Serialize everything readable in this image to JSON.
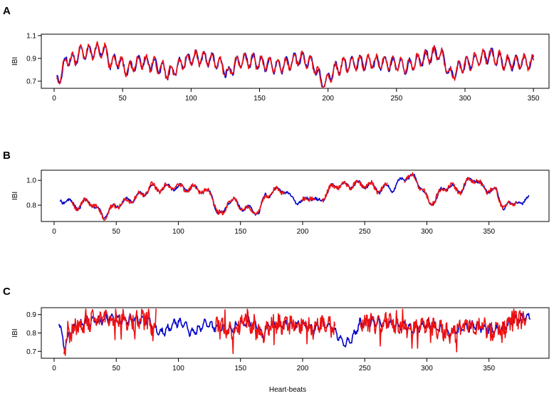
{
  "chart_data": [
    {
      "type": "line",
      "panel_label": "A",
      "ylabel": "IBI",
      "xlabel": "",
      "xlim": [
        0,
        352
      ],
      "ylim": [
        0.65,
        1.1
      ],
      "xticks": [
        0,
        50,
        100,
        150,
        200,
        250,
        300,
        350
      ],
      "yticks": [
        0.7,
        0.9,
        1.1
      ],
      "x_start": 2,
      "x_end": 350,
      "base_profile": [
        [
          2,
          0.7
        ],
        [
          6,
          0.78
        ],
        [
          9,
          0.9
        ],
        [
          14,
          0.88
        ],
        [
          20,
          0.96
        ],
        [
          28,
          0.96
        ],
        [
          34,
          0.98
        ],
        [
          38,
          0.95
        ],
        [
          42,
          0.84
        ],
        [
          45,
          0.9
        ],
        [
          50,
          0.84
        ],
        [
          54,
          0.79
        ],
        [
          58,
          0.84
        ],
        [
          64,
          0.88
        ],
        [
          72,
          0.85
        ],
        [
          78,
          0.82
        ],
        [
          84,
          0.77
        ],
        [
          88,
          0.8
        ],
        [
          93,
          0.86
        ],
        [
          100,
          0.9
        ],
        [
          110,
          0.9
        ],
        [
          118,
          0.88
        ],
        [
          124,
          0.82
        ],
        [
          127,
          0.75
        ],
        [
          130,
          0.82
        ],
        [
          136,
          0.88
        ],
        [
          145,
          0.88
        ],
        [
          150,
          0.86
        ],
        [
          158,
          0.84
        ],
        [
          165,
          0.83
        ],
        [
          172,
          0.86
        ],
        [
          178,
          0.9
        ],
        [
          185,
          0.88
        ],
        [
          190,
          0.84
        ],
        [
          195,
          0.7
        ],
        [
          198,
          0.68
        ],
        [
          203,
          0.78
        ],
        [
          210,
          0.84
        ],
        [
          220,
          0.86
        ],
        [
          230,
          0.87
        ],
        [
          240,
          0.86
        ],
        [
          250,
          0.85
        ],
        [
          258,
          0.82
        ],
        [
          262,
          0.86
        ],
        [
          270,
          0.9
        ],
        [
          276,
          0.93
        ],
        [
          281,
          0.95
        ],
        [
          285,
          0.88
        ],
        [
          289,
          0.75
        ],
        [
          293,
          0.78
        ],
        [
          298,
          0.84
        ],
        [
          305,
          0.87
        ],
        [
          312,
          0.9
        ],
        [
          318,
          0.93
        ],
        [
          324,
          0.9
        ],
        [
          330,
          0.86
        ],
        [
          335,
          0.86
        ],
        [
          342,
          0.87
        ],
        [
          350,
          0.86
        ]
      ],
      "oscillation_amplitude": 0.06,
      "oscillation_period": 6.0,
      "series": [
        {
          "name": "",
          "color": "#0000cc",
          "noise": 0.015
        },
        {
          "name": "",
          "color": "#ee1111",
          "noise": 0.02
        }
      ]
    },
    {
      "type": "line",
      "panel_label": "B",
      "ylabel": "IBI",
      "xlabel": "",
      "xlim": [
        0,
        388
      ],
      "ylim": [
        0.68,
        1.07
      ],
      "xticks": [
        0,
        50,
        100,
        150,
        200,
        250,
        300,
        350
      ],
      "yticks": [
        0.8,
        1.0
      ],
      "x_start": 5,
      "x_end": 382,
      "base_profile": [
        [
          5,
          0.83
        ],
        [
          10,
          0.85
        ],
        [
          15,
          0.8
        ],
        [
          20,
          0.79
        ],
        [
          26,
          0.83
        ],
        [
          30,
          0.82
        ],
        [
          35,
          0.76
        ],
        [
          40,
          0.71
        ],
        [
          45,
          0.76
        ],
        [
          50,
          0.8
        ],
        [
          55,
          0.82
        ],
        [
          60,
          0.84
        ],
        [
          65,
          0.86
        ],
        [
          72,
          0.89
        ],
        [
          78,
          0.95
        ],
        [
          85,
          0.93
        ],
        [
          95,
          0.95
        ],
        [
          105,
          0.94
        ],
        [
          115,
          0.93
        ],
        [
          122,
          0.91
        ],
        [
          127,
          0.88
        ],
        [
          132,
          0.73
        ],
        [
          136,
          0.72
        ],
        [
          140,
          0.84
        ],
        [
          145,
          0.83
        ],
        [
          150,
          0.79
        ],
        [
          155,
          0.77
        ],
        [
          160,
          0.76
        ],
        [
          165,
          0.74
        ],
        [
          170,
          0.88
        ],
        [
          175,
          0.9
        ],
        [
          180,
          0.92
        ],
        [
          185,
          0.93
        ],
        [
          190,
          0.86
        ],
        [
          195,
          0.84
        ],
        [
          200,
          0.82
        ],
        [
          206,
          0.88
        ],
        [
          212,
          0.82
        ],
        [
          218,
          0.88
        ],
        [
          225,
          0.96
        ],
        [
          235,
          0.96
        ],
        [
          245,
          0.97
        ],
        [
          255,
          0.96
        ],
        [
          262,
          0.92
        ],
        [
          268,
          0.95
        ],
        [
          273,
          0.93
        ],
        [
          278,
          0.99
        ],
        [
          283,
          1.03
        ],
        [
          290,
          1.02
        ],
        [
          296,
          0.94
        ],
        [
          302,
          0.81
        ],
        [
          307,
          0.85
        ],
        [
          312,
          0.92
        ],
        [
          318,
          0.96
        ],
        [
          322,
          0.93
        ],
        [
          328,
          0.92
        ],
        [
          333,
          0.99
        ],
        [
          338,
          1.02
        ],
        [
          345,
          0.94
        ],
        [
          352,
          0.92
        ],
        [
          356,
          0.91
        ],
        [
          362,
          0.78
        ],
        [
          367,
          0.8
        ],
        [
          372,
          0.85
        ],
        [
          377,
          0.78
        ],
        [
          382,
          0.91
        ]
      ],
      "oscillation_amplitude": 0.025,
      "oscillation_period": 11.0,
      "red_segments": [
        [
          14,
          185
        ],
        [
          200,
          210
        ],
        [
          216,
          268
        ],
        [
          282,
          372
        ]
      ],
      "series": [
        {
          "name": "",
          "color": "#0000cc",
          "noise": 0.01
        },
        {
          "name": "",
          "color": "#ee1111",
          "noise": 0.018
        }
      ]
    },
    {
      "type": "line",
      "panel_label": "C",
      "ylabel": "IBI",
      "xlabel": "Heart-beats",
      "xlim": [
        0,
        388
      ],
      "ylim": [
        0.67,
        0.93
      ],
      "xticks": [
        0,
        50,
        100,
        150,
        200,
        250,
        300,
        350
      ],
      "yticks": [
        0.7,
        0.8,
        0.9
      ],
      "x_start": 4,
      "x_end": 383,
      "base_profile": [
        [
          4,
          0.87
        ],
        [
          8,
          0.72
        ],
        [
          12,
          0.79
        ],
        [
          18,
          0.84
        ],
        [
          25,
          0.86
        ],
        [
          35,
          0.87
        ],
        [
          45,
          0.88
        ],
        [
          55,
          0.87
        ],
        [
          65,
          0.87
        ],
        [
          75,
          0.88
        ],
        [
          80,
          0.83
        ],
        [
          86,
          0.8
        ],
        [
          92,
          0.82
        ],
        [
          98,
          0.86
        ],
        [
          104,
          0.85
        ],
        [
          110,
          0.8
        ],
        [
          116,
          0.82
        ],
        [
          122,
          0.85
        ],
        [
          132,
          0.83
        ],
        [
          142,
          0.82
        ],
        [
          150,
          0.85
        ],
        [
          158,
          0.86
        ],
        [
          164,
          0.83
        ],
        [
          168,
          0.78
        ],
        [
          172,
          0.84
        ],
        [
          180,
          0.85
        ],
        [
          190,
          0.84
        ],
        [
          200,
          0.85
        ],
        [
          210,
          0.82
        ],
        [
          216,
          0.85
        ],
        [
          222,
          0.84
        ],
        [
          228,
          0.79
        ],
        [
          234,
          0.74
        ],
        [
          240,
          0.77
        ],
        [
          246,
          0.85
        ],
        [
          252,
          0.86
        ],
        [
          260,
          0.86
        ],
        [
          270,
          0.85
        ],
        [
          280,
          0.84
        ],
        [
          290,
          0.82
        ],
        [
          300,
          0.85
        ],
        [
          310,
          0.82
        ],
        [
          320,
          0.8
        ],
        [
          330,
          0.83
        ],
        [
          340,
          0.84
        ],
        [
          350,
          0.82
        ],
        [
          360,
          0.82
        ],
        [
          370,
          0.87
        ],
        [
          376,
          0.88
        ],
        [
          383,
          0.89
        ]
      ],
      "oscillation_amplitude": 0.02,
      "oscillation_period": 5.0,
      "red_segments": [
        [
          8,
          82
        ],
        [
          130,
          226
        ],
        [
          246,
          380
        ]
      ],
      "series": [
        {
          "name": "",
          "color": "#0000cc",
          "noise": 0.012
        },
        {
          "name": "",
          "color": "#ee1111",
          "noise": 0.045
        }
      ]
    }
  ]
}
